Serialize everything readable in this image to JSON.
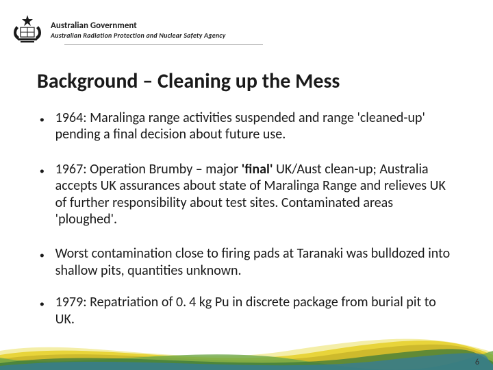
{
  "header": {
    "gov_line": "Australian Government",
    "agency_line": "Australian Radiation Protection and Nuclear Safety Agency"
  },
  "title": "Background – Cleaning up the Mess",
  "bullets": [
    {
      "html": "1964: Maralinga range activities suspended and range 'cleaned-up' pending a final decision about future use."
    },
    {
      "html": "1967: Operation Brumby – major <b>'final'</b> UK/Aust clean-up; Australia accepts UK assurances about state of Maralinga Range and relieves UK of further responsibility about test sites.  Contaminated areas 'ploughed'."
    },
    {
      "html": "Worst contamination close to firing pads at Taranaki was bulldozed into shallow pits, quantities unknown."
    },
    {
      "html": "1979: Repatriation of 0.&#8201;4 kg Pu in discrete package from burial pit to UK."
    }
  ],
  "page_number": "6",
  "colors": {
    "text": "#1a1a1a",
    "rule": "#9a9a9a",
    "wave1": "#e8d43a",
    "wave2": "#c9b52a",
    "wave3": "#6ea84b",
    "wave4": "#3c7a3a",
    "wave5": "#327a9e",
    "wave_light": "#f4eea8"
  }
}
